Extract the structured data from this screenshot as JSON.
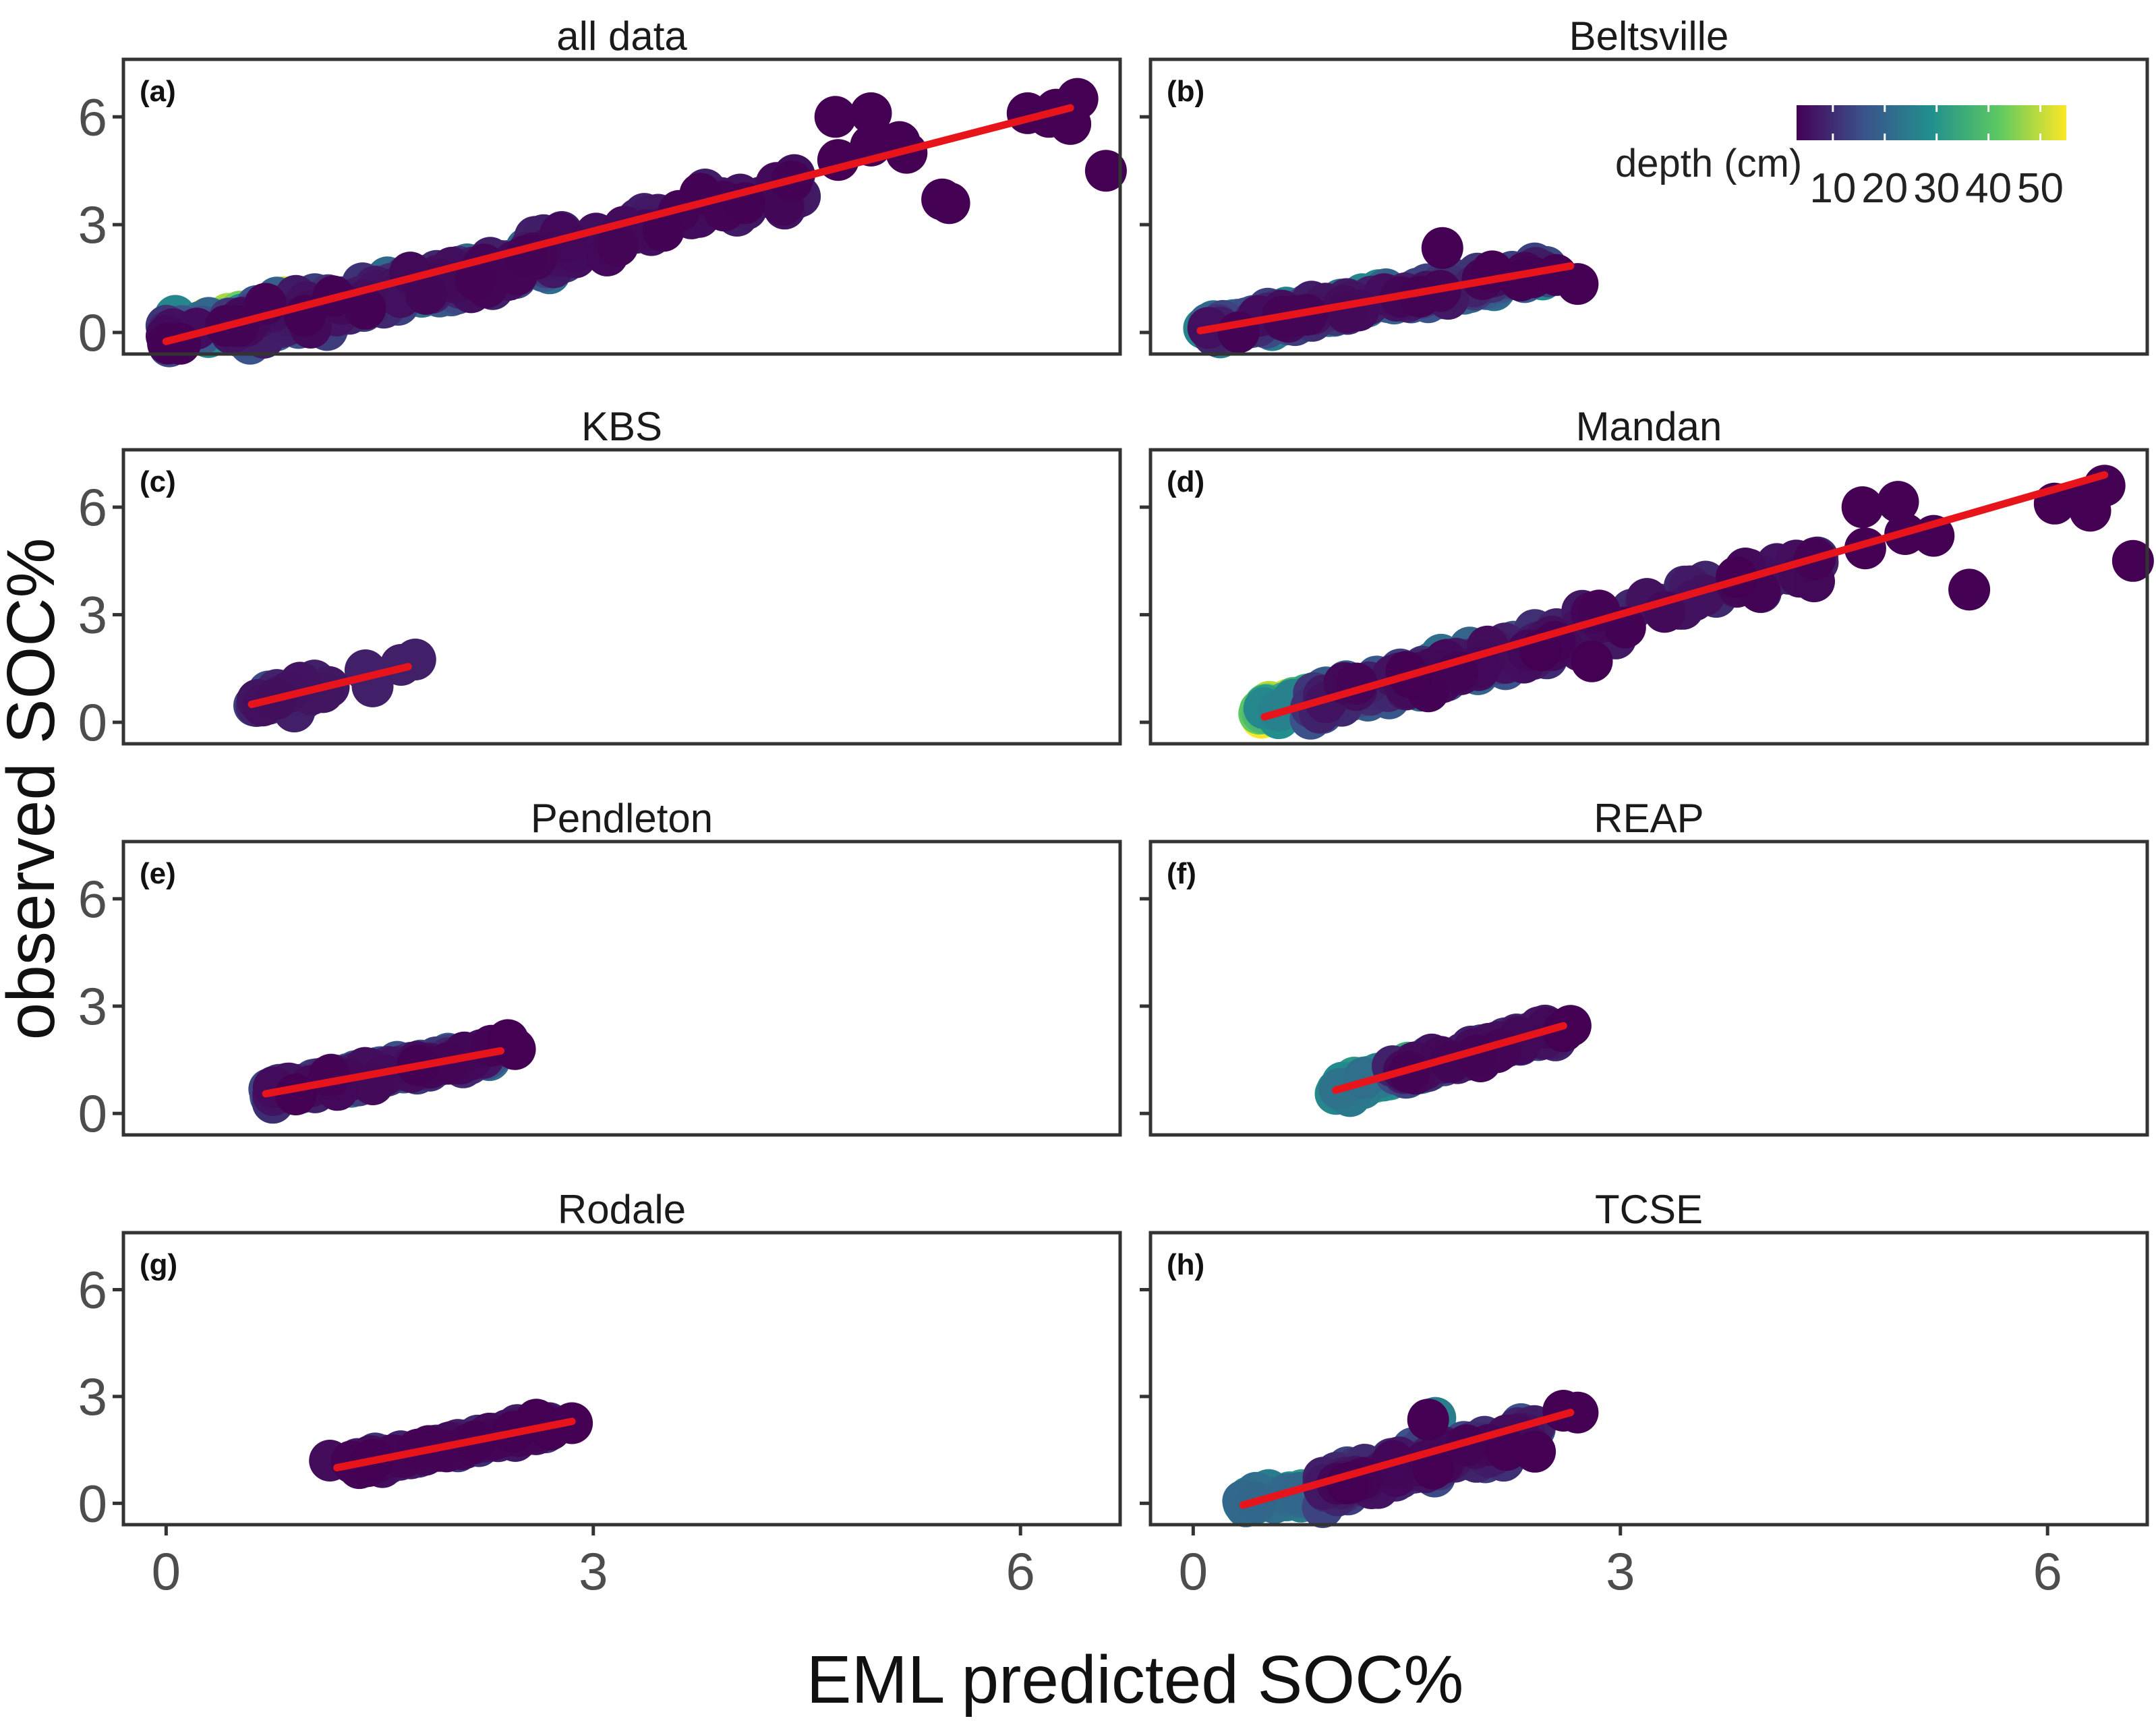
{
  "figure": {
    "xlabel": "EML predicted SOC%",
    "ylabel": "observed SOC%"
  },
  "legend": {
    "title": "depth (cm)",
    "ticks": [
      "10",
      "20",
      "30",
      "40",
      "50"
    ],
    "tick_values": [
      10,
      20,
      30,
      40,
      50
    ],
    "range": [
      3,
      55
    ],
    "colors": [
      "#440154",
      "#3b528b",
      "#21908d",
      "#5dc963",
      "#fde725"
    ]
  },
  "colors": {
    "fit_line": "#e8141c",
    "panel_border": "#333333"
  },
  "chart_data": [
    {
      "type": "scatter",
      "tag": "(a)",
      "title": "all data",
      "xlim": [
        -0.3,
        6.7
      ],
      "ylim": [
        -0.6,
        7.6
      ],
      "xticks": [
        0,
        3,
        6
      ],
      "yticks": [
        0,
        3,
        6
      ],
      "yticklabels": [
        "0",
        "3",
        "6"
      ],
      "fit": {
        "x": [
          0.0,
          6.35
        ],
        "y": [
          -0.25,
          6.25
        ]
      },
      "clusters": [
        {
          "x0": 0.0,
          "x1": 1.0,
          "a": -0.05,
          "b": 0.7,
          "sd": 0.25,
          "n": 120,
          "d0": 3,
          "d1": 55
        },
        {
          "x0": 0.5,
          "x1": 2.8,
          "a": -0.35,
          "b": 0.92,
          "sd": 0.35,
          "n": 240,
          "d0": 3,
          "d1": 22
        },
        {
          "x0": 2.5,
          "x1": 4.5,
          "a": -0.2,
          "b": 0.95,
          "sd": 0.4,
          "n": 60,
          "d0": 3,
          "d1": 8
        }
      ],
      "points": [
        [
          4.7,
          6.0,
          3
        ],
        [
          4.95,
          6.1,
          3
        ],
        [
          4.72,
          4.8,
          3
        ],
        [
          4.95,
          5.2,
          3
        ],
        [
          5.15,
          5.3,
          3
        ],
        [
          5.2,
          5.0,
          3
        ],
        [
          5.45,
          3.7,
          3
        ],
        [
          5.5,
          3.6,
          3
        ],
        [
          6.05,
          6.1,
          3
        ],
        [
          6.25,
          6.2,
          3
        ],
        [
          6.4,
          6.5,
          3
        ],
        [
          6.35,
          5.8,
          3
        ],
        [
          6.6,
          4.5,
          3
        ],
        [
          6.2,
          6.0,
          3
        ]
      ]
    },
    {
      "type": "scatter",
      "tag": "(b)",
      "title": "Beltsville",
      "xlim": [
        -0.3,
        6.7
      ],
      "ylim": [
        -0.6,
        7.6
      ],
      "xticks": [
        0,
        3,
        6
      ],
      "yticks": [
        0,
        3,
        6
      ],
      "yticklabels": [
        "",
        "",
        ""
      ],
      "fit": {
        "x": [
          0.05,
          2.65
        ],
        "y": [
          0.05,
          1.85
        ]
      },
      "clusters": [
        {
          "x0": 0.05,
          "x1": 2.5,
          "a": 0.0,
          "b": 0.68,
          "sd": 0.2,
          "n": 240,
          "d0": 3,
          "d1": 28
        }
      ],
      "points": [
        [
          1.75,
          2.35,
          3
        ],
        [
          2.7,
          1.35,
          3
        ],
        [
          2.55,
          1.6,
          3
        ],
        [
          2.3,
          1.45,
          3
        ],
        [
          2.1,
          1.7,
          3
        ]
      ]
    },
    {
      "type": "scatter",
      "tag": "(c)",
      "title": "KBS",
      "xlim": [
        -0.3,
        6.7
      ],
      "ylim": [
        -0.6,
        7.6
      ],
      "xticks": [
        0,
        3,
        6
      ],
      "yticks": [
        0,
        3,
        6
      ],
      "yticklabels": [
        "0",
        "3",
        "6"
      ],
      "fit": {
        "x": [
          0.6,
          1.7
        ],
        "y": [
          0.5,
          1.55
        ]
      },
      "clusters": [
        {
          "x0": 0.6,
          "x1": 1.15,
          "a": -0.05,
          "b": 0.95,
          "sd": 0.18,
          "n": 45,
          "d0": 5,
          "d1": 15
        }
      ],
      "points": [
        [
          1.4,
          1.45,
          8
        ],
        [
          1.45,
          1.0,
          8
        ],
        [
          1.65,
          1.6,
          8
        ],
        [
          1.75,
          1.75,
          8
        ],
        [
          0.9,
          0.3,
          8
        ]
      ]
    },
    {
      "type": "scatter",
      "tag": "(d)",
      "title": "Mandan",
      "xlim": [
        -0.3,
        6.7
      ],
      "ylim": [
        -0.6,
        7.6
      ],
      "xticks": [
        0,
        3,
        6
      ],
      "yticks": [
        0,
        3,
        6
      ],
      "yticklabels": [
        "",
        "",
        ""
      ],
      "fit": {
        "x": [
          0.5,
          6.4
        ],
        "y": [
          0.15,
          6.9
        ]
      },
      "clusters": [
        {
          "x0": 0.45,
          "x1": 1.0,
          "a": -0.05,
          "b": 0.75,
          "sd": 0.2,
          "n": 70,
          "d0": 25,
          "d1": 55
        },
        {
          "x0": 0.8,
          "x1": 2.6,
          "a": -0.4,
          "b": 1.05,
          "sd": 0.3,
          "n": 170,
          "d0": 3,
          "d1": 25
        },
        {
          "x0": 2.5,
          "x1": 4.4,
          "a": -0.2,
          "b": 1.05,
          "sd": 0.35,
          "n": 60,
          "d0": 3,
          "d1": 10
        }
      ],
      "points": [
        [
          2.8,
          1.7,
          3
        ],
        [
          4.7,
          6.0,
          3
        ],
        [
          4.95,
          6.15,
          3
        ],
        [
          4.72,
          4.85,
          3
        ],
        [
          5.0,
          5.25,
          3
        ],
        [
          5.2,
          5.2,
          3
        ],
        [
          5.45,
          3.7,
          3
        ],
        [
          6.05,
          6.1,
          3
        ],
        [
          6.25,
          6.2,
          3
        ],
        [
          6.4,
          6.6,
          3
        ],
        [
          6.3,
          5.9,
          3
        ],
        [
          6.6,
          4.5,
          3
        ]
      ]
    },
    {
      "type": "scatter",
      "tag": "(e)",
      "title": "Pendleton",
      "xlim": [
        -0.3,
        6.7
      ],
      "ylim": [
        -0.6,
        7.6
      ],
      "xticks": [
        0,
        3,
        6
      ],
      "yticks": [
        0,
        3,
        6
      ],
      "yticklabels": [
        "0",
        "3",
        "6"
      ],
      "fit": {
        "x": [
          0.7,
          2.35
        ],
        "y": [
          0.55,
          1.75
        ]
      },
      "clusters": [
        {
          "x0": 0.7,
          "x1": 2.3,
          "a": 0.05,
          "b": 0.72,
          "sd": 0.15,
          "n": 200,
          "d0": 3,
          "d1": 22
        }
      ],
      "points": [
        [
          2.4,
          2.05,
          3
        ],
        [
          2.45,
          1.8,
          3
        ],
        [
          0.75,
          0.3,
          10
        ]
      ]
    },
    {
      "type": "scatter",
      "tag": "(f)",
      "title": "REAP",
      "xlim": [
        -0.3,
        6.7
      ],
      "ylim": [
        -0.6,
        7.6
      ],
      "xticks": [
        0,
        3,
        6
      ],
      "yticks": [
        0,
        3,
        6
      ],
      "yticklabels": [
        "",
        "",
        ""
      ],
      "fit": {
        "x": [
          1.0,
          2.6
        ],
        "y": [
          0.65,
          2.45
        ]
      },
      "clusters": [
        {
          "x0": 1.0,
          "x1": 1.7,
          "a": -0.45,
          "b": 1.1,
          "sd": 0.15,
          "n": 70,
          "d0": 22,
          "d1": 35
        },
        {
          "x0": 1.4,
          "x1": 2.55,
          "a": -0.45,
          "b": 1.1,
          "sd": 0.18,
          "n": 90,
          "d0": 3,
          "d1": 15
        }
      ],
      "points": [
        [
          2.65,
          2.45,
          3
        ],
        [
          2.6,
          2.3,
          3
        ],
        [
          1.0,
          0.55,
          30
        ]
      ]
    },
    {
      "type": "scatter",
      "tag": "(g)",
      "title": "Rodale",
      "xlim": [
        -0.3,
        6.7
      ],
      "ylim": [
        -0.6,
        7.6
      ],
      "xticks": [
        0,
        3,
        6
      ],
      "yticks": [
        0,
        3,
        6
      ],
      "yticklabels": [
        "0",
        "3",
        "6"
      ],
      "fit": {
        "x": [
          1.2,
          2.85
        ],
        "y": [
          1.0,
          2.3
        ]
      },
      "clusters": [
        {
          "x0": 1.3,
          "x1": 2.7,
          "a": 0.05,
          "b": 0.78,
          "sd": 0.14,
          "n": 160,
          "d0": 3,
          "d1": 12
        }
      ],
      "points": [
        [
          1.15,
          1.2,
          5
        ],
        [
          2.85,
          2.25,
          3
        ],
        [
          2.6,
          2.35,
          3
        ]
      ]
    },
    {
      "type": "scatter",
      "tag": "(h)",
      "title": "TCSE",
      "xlim": [
        -0.3,
        6.7
      ],
      "ylim": [
        -0.6,
        7.6
      ],
      "xticks": [
        0,
        3,
        6
      ],
      "yticks": [
        0,
        3,
        6
      ],
      "yticklabels": [
        "",
        "",
        ""
      ],
      "fit": {
        "x": [
          0.35,
          2.65
        ],
        "y": [
          -0.05,
          2.55
        ]
      },
      "clusters": [
        {
          "x0": 0.35,
          "x1": 1.0,
          "a": -0.05,
          "b": 0.4,
          "sd": 0.12,
          "n": 90,
          "d0": 20,
          "d1": 32
        },
        {
          "x0": 0.9,
          "x1": 2.4,
          "a": -0.55,
          "b": 1.05,
          "sd": 0.3,
          "n": 140,
          "d0": 3,
          "d1": 16
        }
      ],
      "points": [
        [
          2.6,
          2.6,
          3
        ],
        [
          2.7,
          2.55,
          3
        ],
        [
          2.4,
          1.45,
          3
        ],
        [
          2.2,
          1.5,
          3
        ],
        [
          1.7,
          2.4,
          25
        ],
        [
          1.65,
          2.35,
          3
        ]
      ]
    }
  ]
}
